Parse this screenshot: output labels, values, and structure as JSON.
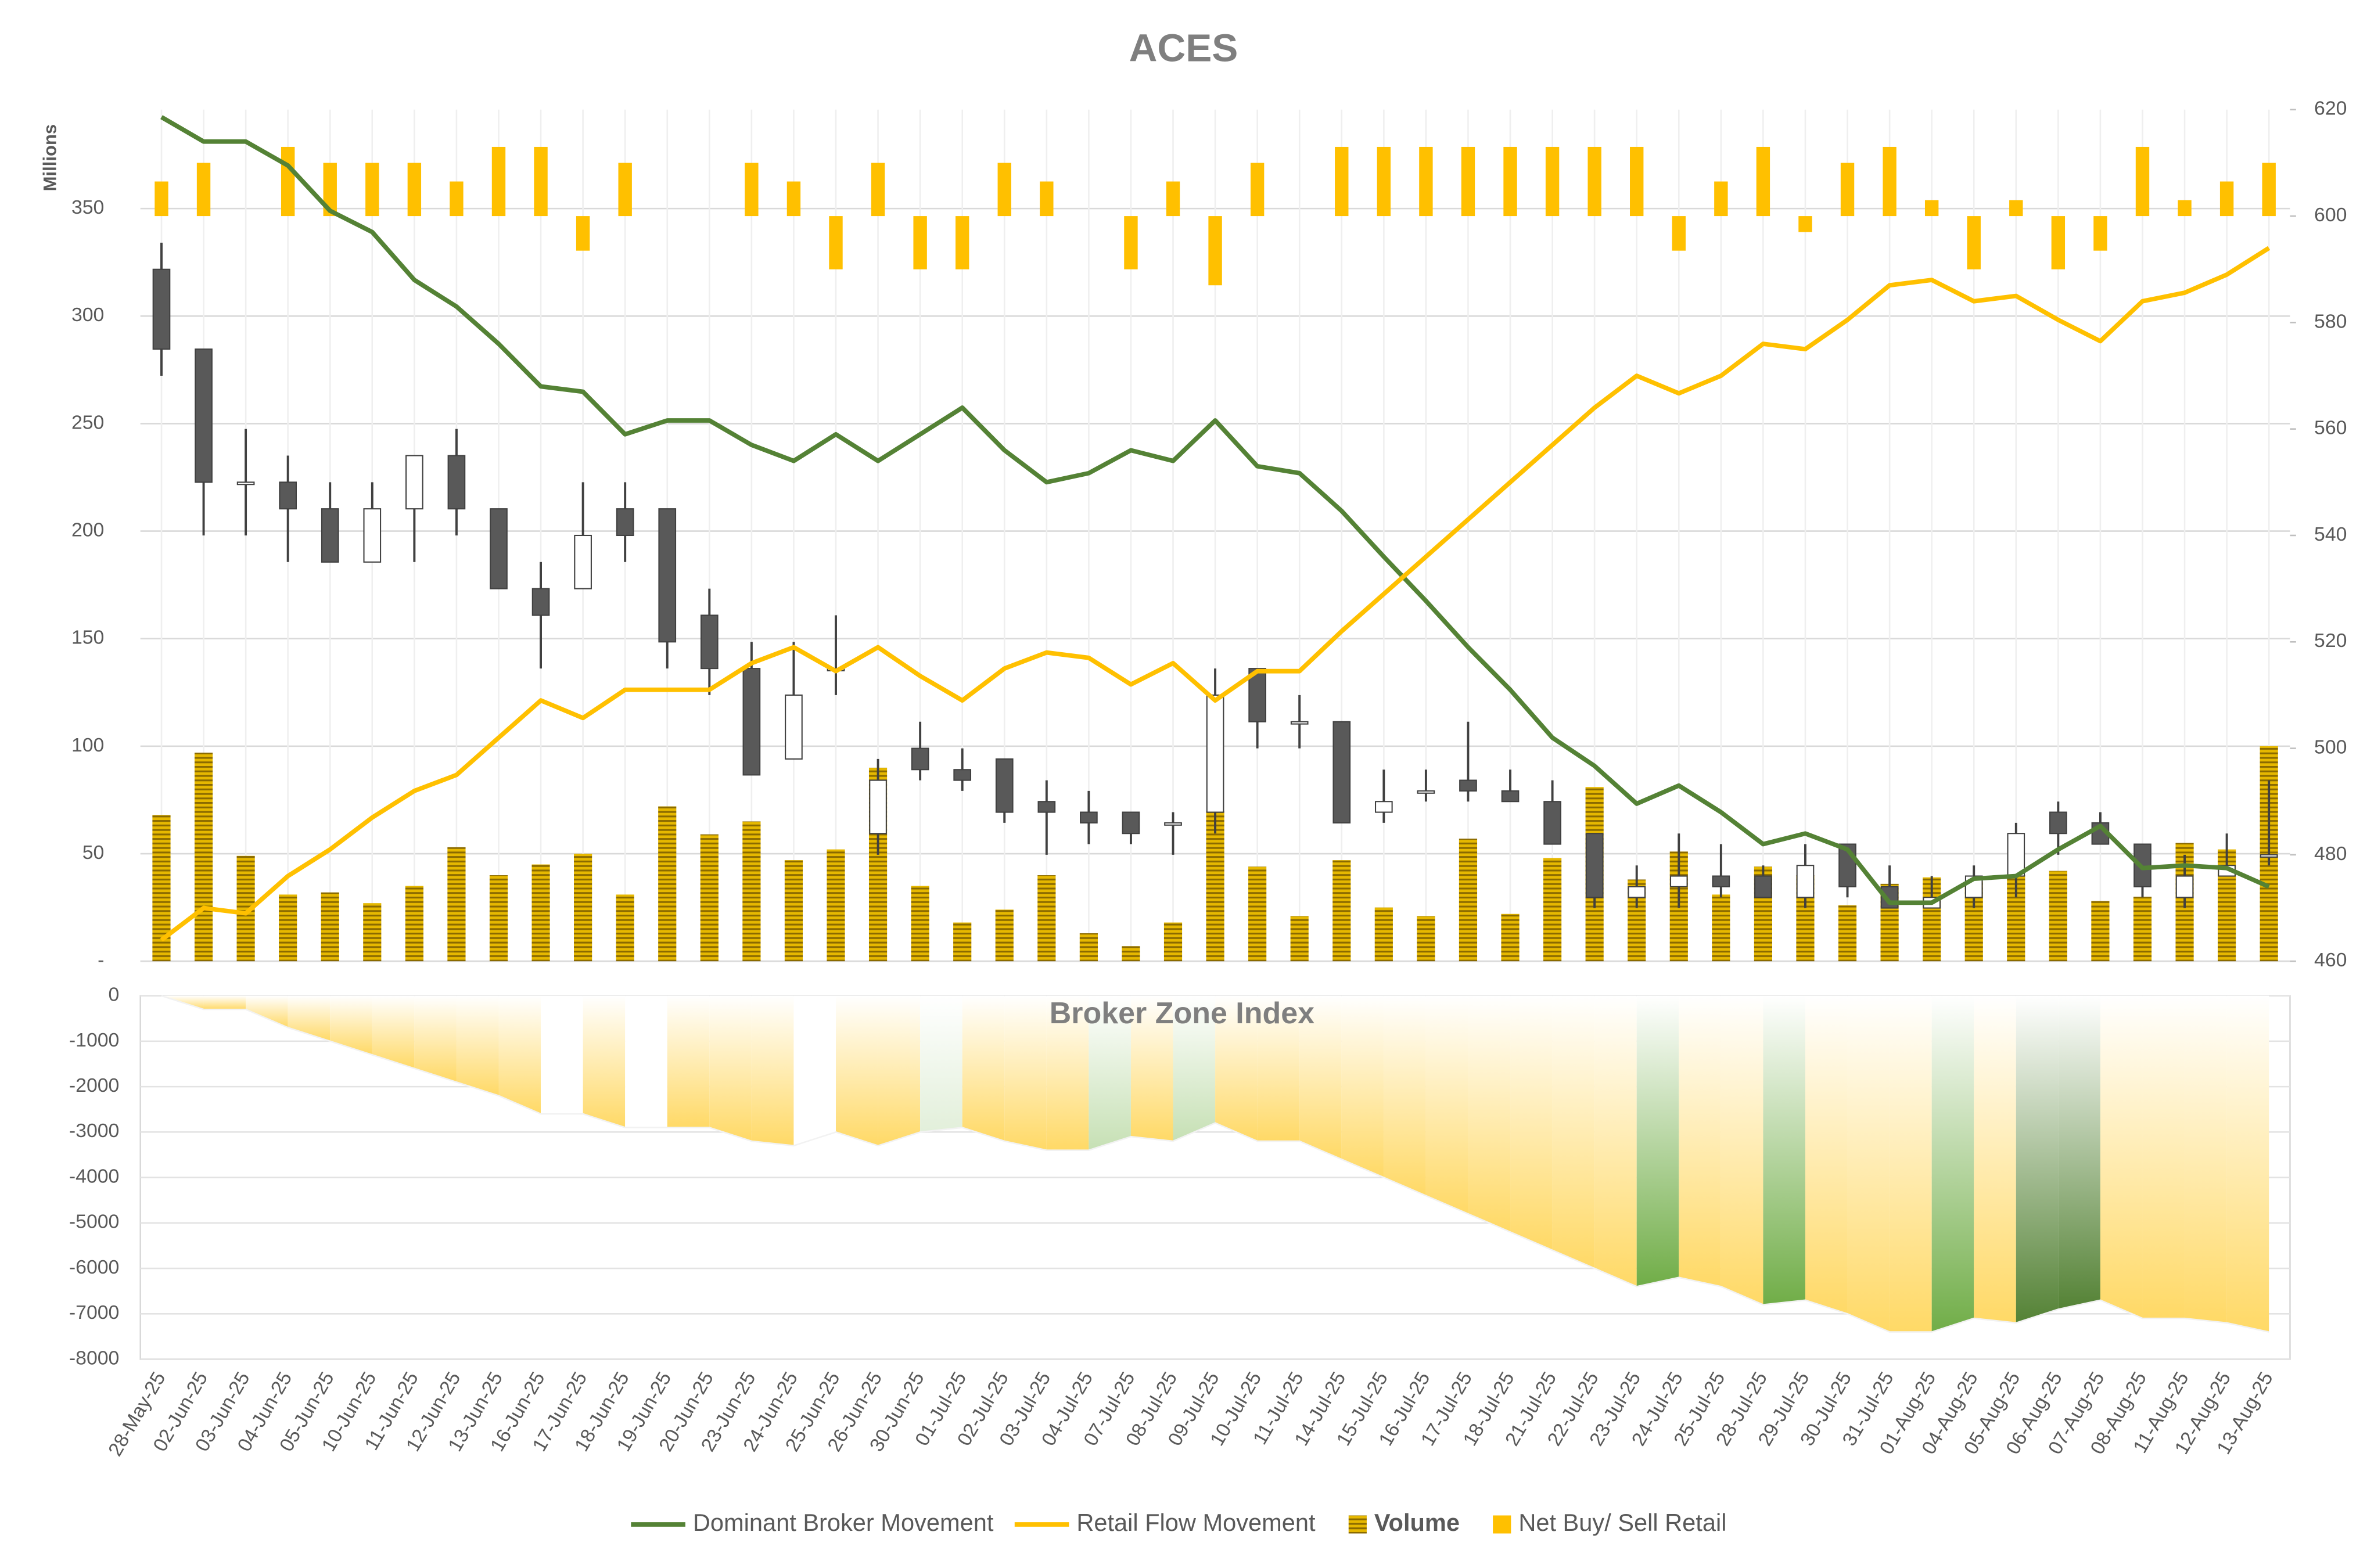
{
  "chart_data": [
    {
      "type": "candlestick",
      "title": "ACES",
      "y_label": "Millions",
      "categories": [
        "28-May-25",
        "02-Jun-25",
        "03-Jun-25",
        "04-Jun-25",
        "05-Jun-25",
        "10-Jun-25",
        "11-Jun-25",
        "12-Jun-25",
        "13-Jun-25",
        "16-Jun-25",
        "17-Jun-25",
        "18-Jun-25",
        "19-Jun-25",
        "20-Jun-25",
        "23-Jun-25",
        "24-Jun-25",
        "25-Jun-25",
        "26-Jun-25",
        "30-Jun-25",
        "01-Jul-25",
        "02-Jul-25",
        "03-Jul-25",
        "04-Jul-25",
        "07-Jul-25",
        "08-Jul-25",
        "09-Jul-25",
        "10-Jul-25",
        "11-Jul-25",
        "14-Jul-25",
        "15-Jul-25",
        "16-Jul-25",
        "17-Jul-25",
        "18-Jul-25",
        "21-Jul-25",
        "22-Jul-25",
        "23-Jul-25",
        "24-Jul-25",
        "25-Jul-25",
        "28-Jul-25",
        "29-Jul-25",
        "30-Jul-25",
        "31-Jul-25",
        "01-Aug-25",
        "04-Aug-25",
        "05-Aug-25",
        "06-Aug-25",
        "07-Aug-25",
        "08-Aug-25",
        "11-Aug-25",
        "12-Aug-25",
        "13-Aug-25"
      ],
      "candle_axis": "y2",
      "up_color": "#ffffff",
      "down_color": "#595959",
      "open": [
        590,
        575,
        550,
        550,
        545,
        535,
        545,
        555,
        545,
        530,
        530,
        545,
        545,
        525,
        515,
        498,
        515,
        484,
        500,
        496,
        498,
        490,
        488,
        488,
        486,
        488,
        515,
        505,
        505,
        488,
        492,
        494,
        492,
        490,
        484,
        472,
        474,
        476,
        476,
        472,
        482,
        474,
        470,
        472,
        476,
        488,
        486,
        482,
        472,
        476,
        480
      ],
      "high": [
        595,
        575,
        560,
        555,
        550,
        550,
        555,
        560,
        545,
        535,
        550,
        550,
        545,
        530,
        520,
        520,
        525,
        498,
        505,
        500,
        498,
        494,
        492,
        488,
        488,
        515,
        515,
        510,
        505,
        496,
        496,
        505,
        496,
        494,
        484,
        478,
        484,
        482,
        478,
        482,
        482,
        478,
        476,
        478,
        486,
        490,
        488,
        482,
        480,
        484,
        494
      ],
      "low": [
        570,
        540,
        540,
        535,
        535,
        535,
        535,
        540,
        530,
        515,
        530,
        535,
        515,
        510,
        495,
        498,
        510,
        480,
        494,
        492,
        486,
        480,
        482,
        482,
        480,
        484,
        500,
        500,
        486,
        486,
        490,
        490,
        490,
        482,
        470,
        470,
        470,
        472,
        472,
        470,
        472,
        470,
        470,
        470,
        472,
        480,
        482,
        472,
        470,
        476,
        478
      ],
      "close": [
        575,
        550,
        550,
        545,
        535,
        545,
        555,
        545,
        530,
        525,
        540,
        540,
        520,
        515,
        495,
        510,
        515,
        494,
        496,
        494,
        488,
        488,
        486,
        484,
        486,
        510,
        505,
        505,
        486,
        490,
        492,
        492,
        490,
        482,
        472,
        474,
        476,
        474,
        472,
        478,
        474,
        470,
        472,
        476,
        484,
        484,
        482,
        474,
        476,
        478,
        480
      ],
      "ylim": [
        0,
        396
      ],
      "yticks": [
        {
          "value": 0,
          "label": "-"
        },
        50,
        100,
        150,
        200,
        250,
        300,
        350
      ],
      "y2lim": [
        460,
        620
      ],
      "y2ticks": [
        460,
        480,
        500,
        520,
        540,
        560,
        580,
        600,
        620
      ],
      "grid": true,
      "legend": "bottom",
      "series": [
        {
          "name": "Dominant Broker Movement",
          "type": "line",
          "color": "#548235",
          "axis": "y2",
          "values": [
            618.6,
            614,
            614,
            609.5,
            601,
            597,
            588,
            583,
            576,
            568,
            567,
            559,
            561.6,
            561.6,
            557,
            554,
            559,
            554,
            559,
            564,
            556,
            550,
            551.7,
            556,
            554,
            561.6,
            553,
            551.7,
            544.6,
            536,
            527.7,
            519,
            511,
            502,
            496.7,
            489.6,
            493,
            488,
            482,
            484,
            481,
            471,
            471,
            475.5,
            476,
            481,
            485.4,
            477.5,
            478,
            477.5,
            474
          ]
        },
        {
          "name": "Retail Flow Movement",
          "type": "line",
          "color": "#ffc000",
          "axis": "y2",
          "values": [
            464,
            470,
            469,
            476,
            481,
            487,
            492,
            495,
            502,
            509,
            505.7,
            511,
            511,
            511,
            516,
            519,
            514.5,
            519,
            513.6,
            509,
            515,
            518,
            517,
            512,
            516,
            509,
            514.5,
            514.5,
            522,
            529,
            536,
            543,
            550,
            557,
            564,
            570,
            566.7,
            570,
            576,
            575,
            580.5,
            587,
            588,
            584,
            585,
            580.5,
            576.5,
            584,
            585.6,
            589,
            594
          ]
        },
        {
          "name": "Volume",
          "type": "bar",
          "color": "#bf9000",
          "values": [
            68,
            97,
            49,
            31,
            32,
            27,
            35,
            53,
            40,
            45,
            50,
            31,
            72,
            59,
            65,
            47,
            52,
            90,
            35,
            18,
            24,
            40,
            13,
            7,
            18,
            70,
            44,
            21,
            47,
            25,
            21,
            57,
            22,
            48,
            81,
            38,
            51,
            31,
            44,
            40,
            26,
            36,
            39,
            37,
            40,
            42,
            28,
            30,
            55,
            52,
            100
          ]
        },
        {
          "name": "Net Buy/ Sell Retail",
          "type": "bar",
          "color": "#ffc000",
          "axis": "y2",
          "values": [
            606.5,
            610,
            null,
            613,
            610,
            610,
            610,
            606.5,
            613,
            613,
            593.5,
            610,
            null,
            null,
            610,
            606.5,
            590,
            610,
            590,
            590,
            610,
            606.5,
            null,
            590,
            606.5,
            587,
            610,
            null,
            613,
            613,
            613,
            613,
            613,
            613,
            613,
            613,
            593.5,
            606.5,
            613,
            597,
            610,
            613,
            603,
            590,
            603,
            590,
            593.5,
            613,
            603,
            606.5,
            610
          ]
        }
      ]
    },
    {
      "type": "area",
      "title": "Broker Zone Index",
      "values": [
        0,
        -300,
        -300,
        -700,
        -1000,
        -1300,
        -1600,
        -1900,
        -2200,
        -2600,
        -2600,
        -2900,
        -2900,
        -2900,
        -3200,
        -3300,
        -3000,
        -3300,
        -3000,
        -2900,
        -3200,
        -3400,
        -3400,
        -3100,
        -3200,
        -2800,
        -3200,
        -3200,
        -3600,
        -4000,
        -4400,
        -4800,
        -5200,
        -5600,
        -6000,
        -6400,
        -6200,
        -6400,
        -6800,
        -6700,
        -7000,
        -7400,
        -7400,
        -7100,
        -7200,
        -6900,
        -6700,
        -7100,
        -7100,
        -7200,
        -7400
      ],
      "segment_colors": [
        "#ffd966",
        "#ffd966",
        "#ffd966",
        "#ffd966",
        "#ffd966",
        "#ffd966",
        "#ffd966",
        "#ffd966",
        "#ffd966",
        "#ffffff",
        "#ffd966",
        "#ffffff",
        "#ffd966",
        "#ffd966",
        "#ffd966",
        "#ffffff",
        "#ffd966",
        "#ffd966",
        "#e2efda",
        "#ffd966",
        "#ffd966",
        "#ffd966",
        "#c6e0b4",
        "#ffd966",
        "#c6e0b4",
        "#ffd966",
        "#ffd966",
        "#ffd966",
        "#ffd966",
        "#ffd966",
        "#ffd966",
        "#ffd966",
        "#ffd966",
        "#ffd966",
        "#ffd966",
        "#70ad47",
        "#ffd966",
        "#ffd966",
        "#70ad47",
        "#ffd966",
        "#ffd966",
        "#ffd966",
        "#70ad47",
        "#ffd966",
        "#548235",
        "#548235",
        "#ffd966",
        "#ffd966",
        "#ffd966",
        "#ffd966"
      ],
      "ylim": [
        -8000,
        0
      ],
      "yticks": [
        0,
        -1000,
        -2000,
        -3000,
        -4000,
        -5000,
        -6000,
        -7000,
        -8000
      ],
      "grid": true
    }
  ]
}
